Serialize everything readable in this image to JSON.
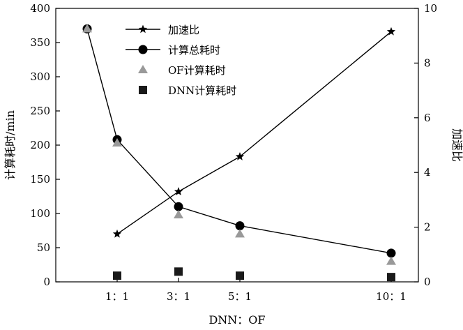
{
  "chart_data": {
    "type": "line",
    "title": "",
    "xlabel": "DNN：OF",
    "ylabel_left": "计算耗时/min",
    "ylabel_right": "加速比",
    "x_categories": [
      "1：1",
      "3：1",
      "5：1",
      "10：1"
    ],
    "x_positions": [
      1,
      3,
      5,
      10
    ],
    "y_left_lim": [
      0,
      400
    ],
    "y_left_ticks": [
      "0",
      "50",
      "100",
      "150",
      "200",
      "250",
      "300",
      "350",
      "400"
    ],
    "y_right_lim": [
      0,
      10
    ],
    "y_right_ticks": [
      "0",
      "2",
      "4",
      "6",
      "8",
      "10"
    ],
    "legend_position": "top-center",
    "series": [
      {
        "name": "加速比",
        "axis": "right",
        "marker": "star",
        "color": "#000000",
        "x": [
          1,
          3,
          5,
          10
        ],
        "values": [
          1.75,
          3.3,
          4.58,
          9.15
        ]
      },
      {
        "name": "计算总耗时",
        "axis": "left",
        "marker": "circle",
        "color": "#000000",
        "x": [
          1,
          3,
          5,
          10
        ],
        "values": [
          208,
          110,
          82,
          42
        ]
      },
      {
        "name": "OF计算耗时",
        "axis": "left",
        "marker": "triangle",
        "color": "#999999",
        "x": [
          1,
          3,
          5,
          10
        ],
        "values": [
          203,
          98,
          70,
          30
        ]
      },
      {
        "name": "DNN计算耗时",
        "axis": "left",
        "marker": "square",
        "color": "#1a1a1a",
        "x": [
          1,
          3,
          5,
          10
        ],
        "values": [
          9,
          15,
          9,
          7
        ]
      }
    ],
    "extra_points": [
      {
        "series": "计算总耗时",
        "x": 0,
        "value": 370,
        "marker": "circle"
      },
      {
        "series": "OF计算耗时",
        "x": 0,
        "value": 370,
        "marker": "triangle"
      },
      {
        "series": "加速比",
        "x": 0,
        "value": 9.25,
        "marker": "star"
      }
    ]
  }
}
